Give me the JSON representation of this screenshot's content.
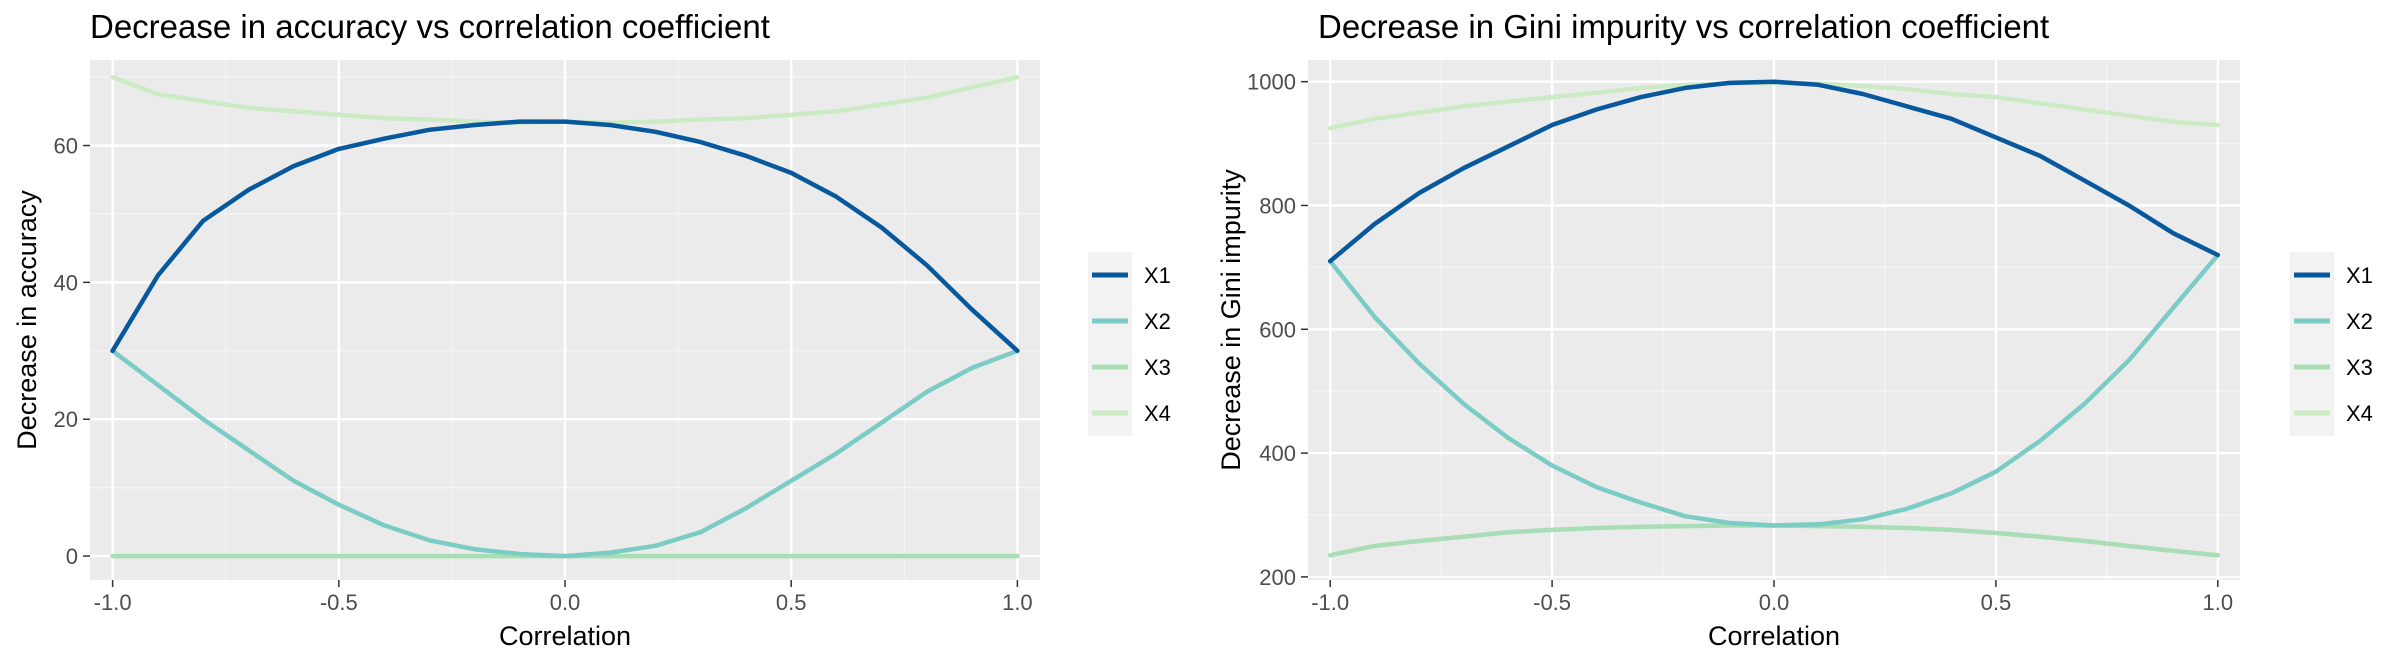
{
  "chart_data": [
    {
      "type": "line",
      "title": "Decrease in accuracy vs correlation coefficient",
      "xlabel": "Correlation",
      "ylabel": "Decrease in accuracy",
      "xlim": [
        -1.05,
        1.05
      ],
      "ylim": [
        -3.5,
        72.5
      ],
      "xticks": [
        -1.0,
        -0.5,
        0.0,
        0.5,
        1.0
      ],
      "xtick_labels": [
        "-1.0",
        "-0.5",
        "0.0",
        "0.5",
        "1.0"
      ],
      "yticks": [
        0,
        20,
        40,
        60
      ],
      "ytick_labels": [
        "0",
        "20",
        "40",
        "60"
      ],
      "grid": true,
      "legend_position": "right",
      "x": [
        -1.0,
        -0.9,
        -0.8,
        -0.7,
        -0.6,
        -0.5,
        -0.4,
        -0.3,
        -0.2,
        -0.1,
        0.0,
        0.1,
        0.2,
        0.3,
        0.4,
        0.5,
        0.6,
        0.7,
        0.8,
        0.9,
        1.0
      ],
      "series": [
        {
          "name": "X1",
          "color": "#08589e",
          "values": [
            30,
            41,
            49,
            53.5,
            57,
            59.5,
            61,
            62.3,
            63,
            63.5,
            63.5,
            63,
            62,
            60.5,
            58.5,
            56,
            52.5,
            48,
            42.5,
            36,
            30
          ]
        },
        {
          "name": "X2",
          "color": "#7bccc4",
          "values": [
            30,
            25,
            20,
            15.5,
            11,
            7.5,
            4.5,
            2.3,
            1,
            0.3,
            0,
            0.5,
            1.5,
            3.5,
            7,
            11,
            15,
            19.5,
            24,
            27.5,
            30
          ]
        },
        {
          "name": "X3",
          "color": "#a8ddb5",
          "values": [
            0,
            0,
            0,
            0,
            0,
            0,
            0,
            0,
            0,
            0,
            0,
            0,
            0,
            0,
            0,
            0,
            0,
            0,
            0,
            0,
            0
          ]
        },
        {
          "name": "X4",
          "color": "#ccebc5",
          "values": [
            70,
            67.5,
            66.5,
            65.5,
            65,
            64.5,
            64,
            63.8,
            63.5,
            63.3,
            63.5,
            63.3,
            63.5,
            63.8,
            64,
            64.5,
            65,
            66,
            67,
            68.5,
            70
          ]
        }
      ]
    },
    {
      "type": "line",
      "title": "Decrease in Gini impurity vs correlation coefficient",
      "xlabel": "Correlation",
      "ylabel": "Decrease in Gini impurity",
      "xlim": [
        -1.05,
        1.05
      ],
      "ylim": [
        195,
        1035
      ],
      "xticks": [
        -1.0,
        -0.5,
        0.0,
        0.5,
        1.0
      ],
      "xtick_labels": [
        "-1.0",
        "-0.5",
        "0.0",
        "0.5",
        "1.0"
      ],
      "yticks": [
        200,
        400,
        600,
        800,
        1000
      ],
      "ytick_labels": [
        "200",
        "400",
        "600",
        "800",
        "1000"
      ],
      "grid": true,
      "legend_position": "right",
      "x": [
        -1.0,
        -0.9,
        -0.8,
        -0.7,
        -0.6,
        -0.5,
        -0.4,
        -0.3,
        -0.2,
        -0.1,
        0.0,
        0.1,
        0.2,
        0.3,
        0.4,
        0.5,
        0.6,
        0.7,
        0.8,
        0.9,
        1.0
      ],
      "series": [
        {
          "name": "X1",
          "color": "#08589e",
          "values": [
            710,
            770,
            820,
            860,
            895,
            930,
            955,
            975,
            990,
            998,
            1000,
            995,
            980,
            960,
            940,
            910,
            880,
            840,
            800,
            755,
            720
          ]
        },
        {
          "name": "X2",
          "color": "#7bccc4",
          "values": [
            710,
            620,
            545,
            480,
            425,
            380,
            345,
            320,
            298,
            287,
            283,
            285,
            293,
            310,
            335,
            370,
            420,
            480,
            550,
            635,
            720
          ]
        },
        {
          "name": "X3",
          "color": "#a8ddb5",
          "values": [
            235,
            250,
            258,
            265,
            272,
            276,
            279,
            281,
            282,
            283,
            283,
            282,
            281,
            279,
            276,
            271,
            265,
            258,
            250,
            242,
            235
          ]
        },
        {
          "name": "X4",
          "color": "#ccebc5",
          "values": [
            925,
            940,
            950,
            960,
            968,
            975,
            982,
            990,
            995,
            997,
            998,
            997,
            993,
            988,
            980,
            975,
            965,
            955,
            945,
            935,
            930
          ]
        }
      ]
    }
  ]
}
